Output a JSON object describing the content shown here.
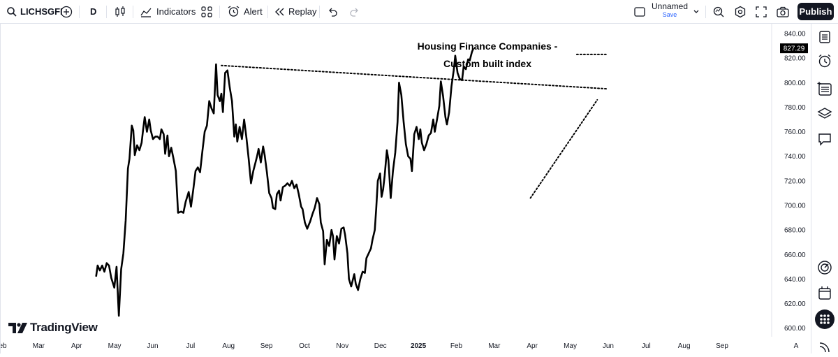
{
  "toolbar": {
    "symbol": "LICHSGFI",
    "interval": "D",
    "indicators_label": "Indicators",
    "alert_label": "Alert",
    "replay_label": "Replay",
    "layout_name": "Unnamed",
    "save_label": "Save",
    "publish_label": "Publish"
  },
  "branding": {
    "logo_text": "TradingView"
  },
  "icons": {
    "search": "search-icon",
    "add": "plus-circle-icon",
    "candles": "candlestick-icon",
    "indicators": "indicators-icon",
    "templates": "grid-icon",
    "alert": "alarm-clock-icon",
    "replay": "rewind-icon",
    "undo": "undo-icon",
    "redo": "redo-icon",
    "layout": "square-layout-icon",
    "quick-search": "magnifier-icon",
    "settings": "hexagon-gear-icon",
    "fullscreen": "fullscreen-icon",
    "snapshot": "camera-icon",
    "watchlist": "list-icon",
    "alerts_panel": "alarm-icon",
    "object_tree": "object-tree-icon",
    "layers": "layers-icon",
    "chat": "chat-icon",
    "target": "target-icon",
    "calendar": "calendar-icon",
    "apps": "apps-grid-icon",
    "broadcast": "broadcast-icon"
  },
  "colors": {
    "line": "#000000",
    "publish_bg": "#131722",
    "save_text": "#2962ff",
    "axis_text": "#131722",
    "price_badge_bg": "#000000"
  },
  "chart_data": {
    "type": "line",
    "symbol": "LICHSGFI",
    "annotation_lines": [
      "Housing Finance Companies -",
      "Custom built index"
    ],
    "last_price_label": "827.29",
    "ylim": [
      593,
      848
    ],
    "y_ticks": [
      600,
      620,
      640,
      660,
      680,
      700,
      720,
      740,
      760,
      780,
      800,
      820,
      840
    ],
    "y_tick_labels": [
      "600.00",
      "620.00",
      "640.00",
      "660.00",
      "680.00",
      "700.00",
      "720.00",
      "740.00",
      "760.00",
      "780.00",
      "800.00",
      "820.00",
      "840.00"
    ],
    "x_tick_labels": [
      "Feb",
      "Mar",
      "Apr",
      "May",
      "Jun",
      "Jul",
      "Aug",
      "Sep",
      "Oct",
      "Nov",
      "Dec",
      "2025",
      "Feb",
      "Mar",
      "Apr",
      "May",
      "Jun",
      "Jul",
      "Aug",
      "Sep"
    ],
    "x_tick_positions": [
      0.0,
      1.0,
      2.0,
      3.0,
      4.0,
      5.0,
      6.0,
      7.0,
      8.0,
      9.0,
      10.0,
      11.0,
      12.0,
      13.0,
      14.0,
      15.0,
      16.0,
      17.0,
      18.0,
      19.0
    ],
    "series": [
      {
        "values": [
          [
            2.42,
            642
          ],
          [
            2.46,
            651
          ],
          [
            2.52,
            647
          ],
          [
            2.58,
            651
          ],
          [
            2.64,
            646
          ],
          [
            2.7,
            653
          ],
          [
            2.76,
            651
          ],
          [
            2.82,
            641
          ],
          [
            2.9,
            633
          ],
          [
            2.96,
            650
          ],
          [
            3.02,
            610
          ],
          [
            3.08,
            648
          ],
          [
            3.14,
            661
          ],
          [
            3.2,
            688
          ],
          [
            3.26,
            730
          ],
          [
            3.3,
            738
          ],
          [
            3.36,
            765
          ],
          [
            3.4,
            761
          ],
          [
            3.44,
            741
          ],
          [
            3.5,
            749
          ],
          [
            3.56,
            745
          ],
          [
            3.62,
            751
          ],
          [
            3.66,
            762
          ],
          [
            3.7,
            772
          ],
          [
            3.76,
            760
          ],
          [
            3.82,
            770
          ],
          [
            3.86,
            761
          ],
          [
            3.92,
            754
          ],
          [
            3.98,
            756
          ],
          [
            4.04,
            756
          ],
          [
            4.1,
            754
          ],
          [
            4.14,
            762
          ],
          [
            4.2,
            758
          ],
          [
            4.24,
            742
          ],
          [
            4.3,
            757
          ],
          [
            4.34,
            740
          ],
          [
            4.4,
            747
          ],
          [
            4.46,
            738
          ],
          [
            4.52,
            728
          ],
          [
            4.58,
            694
          ],
          [
            4.66,
            695
          ],
          [
            4.72,
            694
          ],
          [
            4.78,
            703
          ],
          [
            4.86,
            711
          ],
          [
            4.92,
            699
          ],
          [
            4.98,
            713
          ],
          [
            5.04,
            728
          ],
          [
            5.1,
            731
          ],
          [
            5.16,
            727
          ],
          [
            5.22,
            744
          ],
          [
            5.28,
            760
          ],
          [
            5.34,
            765
          ],
          [
            5.4,
            785
          ],
          [
            5.46,
            779
          ],
          [
            5.52,
            775
          ],
          [
            5.58,
            815
          ],
          [
            5.62,
            790
          ],
          [
            5.68,
            785
          ],
          [
            5.72,
            791
          ],
          [
            5.76,
            776
          ],
          [
            5.82,
            808
          ],
          [
            5.88,
            810
          ],
          [
            5.94,
            796
          ],
          [
            6.0,
            785
          ],
          [
            6.06,
            756
          ],
          [
            6.1,
            766
          ],
          [
            6.14,
            752
          ],
          [
            6.2,
            764
          ],
          [
            6.26,
            754
          ],
          [
            6.32,
            770
          ],
          [
            6.38,
            755
          ],
          [
            6.44,
            738
          ],
          [
            6.5,
            718
          ],
          [
            6.56,
            728
          ],
          [
            6.62,
            735
          ],
          [
            6.66,
            740
          ],
          [
            6.7,
            746
          ],
          [
            6.76,
            735
          ],
          [
            6.82,
            748
          ],
          [
            6.86,
            741
          ],
          [
            6.92,
            727
          ],
          [
            6.98,
            710
          ],
          [
            7.04,
            706
          ],
          [
            7.08,
            698
          ],
          [
            7.14,
            697
          ],
          [
            7.18,
            709
          ],
          [
            7.24,
            712
          ],
          [
            7.28,
            704
          ],
          [
            7.34,
            715
          ],
          [
            7.4,
            716
          ],
          [
            7.46,
            718
          ],
          [
            7.52,
            716
          ],
          [
            7.58,
            720
          ],
          [
            7.64,
            714
          ],
          [
            7.7,
            717
          ],
          [
            7.76,
            709
          ],
          [
            7.82,
            699
          ],
          [
            7.86,
            697
          ],
          [
            7.92,
            686
          ],
          [
            7.98,
            681
          ],
          [
            8.06,
            687
          ],
          [
            8.12,
            693
          ],
          [
            8.18,
            698
          ],
          [
            8.24,
            706
          ],
          [
            8.3,
            701
          ],
          [
            8.34,
            686
          ],
          [
            8.4,
            679
          ],
          [
            8.44,
            652
          ],
          [
            8.5,
            672
          ],
          [
            8.56,
            667
          ],
          [
            8.62,
            680
          ],
          [
            8.66,
            675
          ],
          [
            8.7,
            656
          ],
          [
            8.76,
            675
          ],
          [
            8.82,
            669
          ],
          [
            8.88,
            681
          ],
          [
            8.94,
            682
          ],
          [
            8.98,
            676
          ],
          [
            9.04,
            661
          ],
          [
            9.08,
            640
          ],
          [
            9.14,
            634
          ],
          [
            9.18,
            639
          ],
          [
            9.22,
            644
          ],
          [
            9.26,
            636
          ],
          [
            9.32,
            631
          ],
          [
            9.38,
            640
          ],
          [
            9.44,
            646
          ],
          [
            9.5,
            645
          ],
          [
            9.54,
            657
          ],
          [
            9.6,
            661
          ],
          [
            9.66,
            665
          ],
          [
            9.7,
            672
          ],
          [
            9.76,
            680
          ],
          [
            9.8,
            698
          ],
          [
            9.84,
            720
          ],
          [
            9.9,
            726
          ],
          [
            9.94,
            707
          ],
          [
            9.98,
            713
          ],
          [
            10.02,
            724
          ],
          [
            10.08,
            745
          ],
          [
            10.12,
            737
          ],
          [
            10.18,
            706
          ],
          [
            10.24,
            728
          ],
          [
            10.3,
            743
          ],
          [
            10.36,
            768
          ],
          [
            10.4,
            800
          ],
          [
            10.46,
            790
          ],
          [
            10.52,
            768
          ],
          [
            10.58,
            750
          ],
          [
            10.64,
            740
          ],
          [
            10.7,
            738
          ],
          [
            10.74,
            728
          ],
          [
            10.8,
            758
          ],
          [
            10.86,
            764
          ],
          [
            10.92,
            754
          ],
          [
            10.96,
            762
          ],
          [
            11.0,
            751
          ],
          [
            11.06,
            745
          ],
          [
            11.12,
            750
          ],
          [
            11.18,
            757
          ],
          [
            11.24,
            759
          ],
          [
            11.3,
            770
          ],
          [
            11.34,
            760
          ],
          [
            11.4,
            770
          ],
          [
            11.46,
            781
          ],
          [
            11.5,
            801
          ],
          [
            11.56,
            789
          ],
          [
            11.62,
            772
          ],
          [
            11.66,
            766
          ],
          [
            11.72,
            776
          ],
          [
            11.78,
            797
          ],
          [
            11.84,
            810
          ],
          [
            11.88,
            822
          ],
          [
            11.94,
            808
          ],
          [
            12.0,
            803
          ],
          [
            12.06,
            802
          ],
          [
            12.1,
            813
          ],
          [
            12.16,
            811
          ],
          [
            12.22,
            819
          ],
          [
            12.26,
            818
          ],
          [
            12.32,
            825
          ],
          [
            12.36,
            828
          ]
        ]
      }
    ],
    "trendlines": [
      {
        "style": "dotted",
        "points": [
          [
            5.72,
            814
          ],
          [
            15.87,
            795
          ]
        ]
      },
      {
        "style": "dotted",
        "points": [
          [
            13.86,
            706
          ],
          [
            15.62,
            786
          ]
        ]
      },
      {
        "style": "dotted",
        "points": [
          [
            15.08,
            823
          ],
          [
            15.85,
            823
          ]
        ]
      }
    ]
  },
  "right_panel": {
    "items": [
      "watchlist",
      "alerts",
      "object-tree",
      "layers",
      "chat",
      "target",
      "calendar",
      "apps",
      "broadcast"
    ]
  }
}
